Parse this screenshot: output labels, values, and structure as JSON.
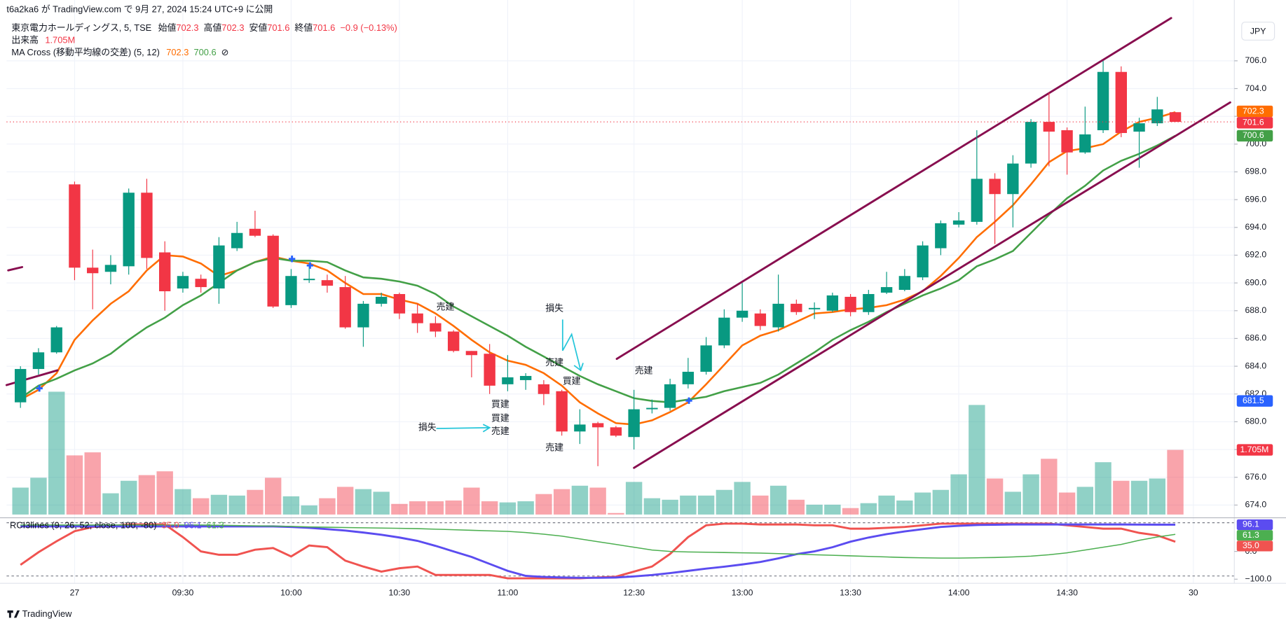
{
  "header": {
    "published": "t6a2ka6 が TradingView.com で 9月 27, 2024 15:24 UTC+9 に公開",
    "symbol": "東京電力ホールディングス, 5, TSE",
    "open_label": "始値",
    "high_label": "高値",
    "low_label": "安値",
    "close_label": "終値",
    "change": "−0.9 (−0.13%)",
    "volume_label": "出来高",
    "ma_label": "MA Cross (移動平均線の交差) (5, 12)",
    "logo": "TradingView"
  },
  "chart_data": {
    "type": "candlestick",
    "currency": "JPY",
    "grid": true,
    "xlim": [
      -0.77,
      67.27
    ],
    "xticks": [
      {
        "value": 3,
        "label": "27"
      },
      {
        "value": 9,
        "label": "09:30"
      },
      {
        "value": 15,
        "label": "10:00"
      },
      {
        "value": 21,
        "label": "10:30"
      },
      {
        "value": 27,
        "label": "11:00"
      },
      {
        "value": 34,
        "label": "12:30"
      },
      {
        "value": 40,
        "label": "13:00"
      },
      {
        "value": 46,
        "label": "13:30"
      },
      {
        "value": 52,
        "label": "14:00"
      },
      {
        "value": 58,
        "label": "14:30"
      },
      {
        "value": 65,
        "label": "30"
      }
    ],
    "ylim": [
      673.2,
      709.2
    ],
    "yticks": [
      {
        "value": 674,
        "label": "674.0"
      },
      {
        "value": 676,
        "label": "676.0"
      },
      {
        "value": 678,
        "label": "678.0"
      },
      {
        "value": 680,
        "label": "680.0"
      },
      {
        "value": 682,
        "label": "682.0"
      },
      {
        "value": 684,
        "label": "684.0"
      },
      {
        "value": 686,
        "label": "686.0"
      },
      {
        "value": 688,
        "label": "688.0"
      },
      {
        "value": 690,
        "label": "690.0"
      },
      {
        "value": 692,
        "label": "692.0"
      },
      {
        "value": 694,
        "label": "694.0"
      },
      {
        "value": 696,
        "label": "696.0"
      },
      {
        "value": 698,
        "label": "698.0"
      },
      {
        "value": 700,
        "label": "700.0"
      },
      {
        "value": 702,
        "label": "702.0"
      },
      {
        "value": 704,
        "label": "704.0"
      },
      {
        "value": 706,
        "label": "706.0"
      }
    ],
    "up_color": "#089981",
    "down_color": "#f23645",
    "open": [
      681.4,
      683.8,
      685.0,
      697.1,
      691.1,
      690.8,
      691.2,
      696.5,
      692.2,
      689.6,
      690.3,
      689.6,
      692.5,
      693.9,
      693.4,
      688.4,
      690.2,
      690.2,
      689.7,
      686.8,
      688.5,
      689.2,
      687.8,
      687.1,
      686.5,
      685.1,
      684.9,
      682.7,
      683.0,
      682.7,
      682.2,
      679.3,
      679.9,
      679.6,
      678.9,
      680.9,
      681.0,
      682.7,
      683.6,
      685.5,
      687.5,
      687.8,
      686.8,
      688.5,
      688.1,
      688.0,
      689.0,
      687.9,
      689.3,
      689.5,
      690.4,
      692.5,
      694.2,
      694.4,
      697.5,
      696.4,
      698.6,
      701.6,
      701.0,
      699.4,
      701.0,
      705.2,
      700.9,
      701.5,
      702.3
    ],
    "high": [
      684.0,
      685.3,
      686.9,
      697.3,
      692.4,
      692.0,
      696.8,
      697.5,
      693.0,
      690.8,
      690.6,
      693.3,
      694.4,
      695.2,
      693.5,
      691.0,
      691.4,
      690.6,
      690.5,
      688.7,
      689.3,
      689.3,
      688.5,
      687.6,
      686.6,
      685.1,
      685.6,
      684.8,
      683.5,
      683.0,
      682.3,
      680.9,
      680.0,
      679.7,
      682.3,
      681.6,
      683.1,
      684.6,
      686.1,
      688.1,
      690.0,
      688.1,
      690.6,
      688.8,
      688.6,
      689.3,
      689.2,
      689.5,
      690.8,
      691.0,
      693.0,
      694.5,
      695.1,
      701.0,
      697.9,
      699.2,
      701.8,
      703.7,
      701.2,
      702.7,
      706.0,
      705.6,
      701.9,
      703.4,
      702.3
    ],
    "low": [
      681.0,
      683.4,
      684.9,
      690.2,
      688.1,
      689.9,
      690.6,
      691.0,
      688.0,
      689.3,
      689.3,
      688.5,
      692.3,
      693.3,
      688.2,
      688.2,
      690.0,
      689.3,
      686.7,
      685.4,
      688.3,
      687.4,
      686.4,
      686.1,
      685.0,
      683.2,
      682.0,
      682.2,
      682.3,
      681.2,
      679.0,
      678.4,
      676.8,
      678.9,
      678.0,
      680.6,
      680.8,
      682.4,
      683.4,
      685.3,
      687.2,
      686.6,
      686.5,
      687.7,
      687.4,
      687.9,
      687.6,
      687.7,
      689.2,
      689.4,
      690.2,
      692.0,
      694.0,
      694.2,
      692.8,
      694.0,
      698.3,
      698.4,
      697.8,
      699.3,
      700.8,
      700.5,
      698.3,
      701.3,
      701.6
    ],
    "close": [
      683.8,
      685.0,
      686.8,
      691.1,
      690.7,
      691.3,
      696.5,
      691.8,
      689.4,
      690.5,
      689.7,
      692.7,
      693.6,
      693.4,
      688.3,
      690.5,
      690.3,
      689.8,
      686.8,
      688.5,
      689.0,
      687.8,
      687.1,
      686.5,
      685.1,
      684.8,
      682.6,
      683.2,
      683.3,
      682.0,
      679.3,
      679.8,
      679.6,
      679.0,
      680.9,
      681.0,
      682.7,
      683.6,
      685.5,
      687.5,
      688.0,
      686.9,
      688.5,
      687.9,
      688.2,
      689.1,
      687.9,
      689.2,
      689.7,
      690.5,
      692.7,
      694.3,
      694.5,
      697.5,
      696.4,
      698.6,
      701.6,
      700.9,
      699.4,
      700.7,
      705.2,
      700.8,
      701.5,
      702.5,
      701.6
    ],
    "volume": {
      "values": [
        0.71,
        0.97,
        3.24,
        1.56,
        1.64,
        0.56,
        0.89,
        1.04,
        1.14,
        0.67,
        0.43,
        0.52,
        0.5,
        0.65,
        0.97,
        0.48,
        0.24,
        0.43,
        0.73,
        0.67,
        0.6,
        0.28,
        0.35,
        0.35,
        0.37,
        0.71,
        0.35,
        0.32,
        0.35,
        0.54,
        0.67,
        0.76,
        0.71,
        0.04,
        0.86,
        0.43,
        0.39,
        0.5,
        0.5,
        0.65,
        0.86,
        0.5,
        0.76,
        0.39,
        0.26,
        0.26,
        0.17,
        0.3,
        0.5,
        0.37,
        0.58,
        0.65,
        1.06,
        2.89,
        0.95,
        0.6,
        1.06,
        1.47,
        0.58,
        0.73,
        1.38,
        0.89,
        0.89,
        0.95,
        1.705
      ],
      "last_label": "1.705M",
      "ylim": [
        0,
        3.89
      ]
    },
    "ma": [
      {
        "color": "#ff6d00",
        "values": [
          681.6,
          682.3,
          683.5,
          685.9,
          687.3,
          688.5,
          689.4,
          690.9,
          692.0,
          691.9,
          691.4,
          690.5,
          690.9,
          691.5,
          691.9,
          691.6,
          691.4,
          690.9,
          690.0,
          689.2,
          689.2,
          688.8,
          688.5,
          687.8,
          686.9,
          685.9,
          685.0,
          684.4,
          684.1,
          683.5,
          682.6,
          681.4,
          680.6,
          679.9,
          679.8,
          680.1,
          680.7,
          681.4,
          682.7,
          684.1,
          685.5,
          686.2,
          686.6,
          687.2,
          687.8,
          687.9,
          688.1,
          688.2,
          688.4,
          688.8,
          689.4,
          690.5,
          691.8,
          693.3,
          694.4,
          695.6,
          697.1,
          698.7,
          699.5,
          699.7,
          700.0,
          700.9,
          701.6,
          701.9,
          702.3
        ]
      },
      {
        "color": "#43a047",
        "values": [
          681.7,
          682.6,
          683.1,
          683.7,
          684.2,
          684.9,
          685.9,
          686.8,
          687.5,
          688.4,
          689.1,
          690.0,
          690.9,
          691.5,
          691.8,
          691.6,
          691.6,
          691.5,
          690.9,
          690.4,
          690.3,
          690.1,
          689.8,
          689.2,
          688.3,
          687.6,
          686.9,
          686.2,
          685.4,
          684.7,
          684.0,
          683.3,
          682.7,
          682.2,
          681.7,
          681.5,
          681.4,
          681.6,
          681.8,
          682.2,
          682.5,
          682.8,
          683.4,
          684.2,
          685.0,
          685.9,
          686.6,
          687.2,
          687.9,
          688.5,
          689.1,
          689.6,
          690.2,
          691.2,
          691.7,
          692.3,
          693.6,
          694.9,
          696.1,
          697.0,
          698.1,
          698.8,
          699.3,
          699.9,
          700.6
        ]
      }
    ],
    "marker": {
      "value": 681.5,
      "color": "#2962ff"
    },
    "annotations": [
      "売建",
      "損失",
      "売建",
      "買建",
      "売建",
      "買建",
      "買建",
      "売建",
      "損失",
      "売建"
    ],
    "rci": {
      "title": "RCI3lines (9, 26, 52, close, 100, -80)",
      "ylim": [
        -115,
        118
      ],
      "yticks": [
        {
          "value": 0,
          "label": "0.0"
        },
        {
          "value": -100,
          "label": "−100.0"
        }
      ],
      "series": [
        {
          "color": "#f05350",
          "last": {
            "value": 35,
            "label": "35.0"
          },
          "values": [
            -48.5,
            -3,
            36.4,
            72.7,
            87.9,
            90.9,
            97,
            97,
            97,
            51.5,
            0,
            -12.1,
            -12.1,
            6.1,
            12.1,
            -18.2,
            21.2,
            15.2,
            -33.3,
            -54.5,
            -72.7,
            -60.6,
            -54.5,
            -84.8,
            -84.8,
            -84.8,
            -84.8,
            -97,
            -97,
            -97,
            -97,
            -97,
            -93.9,
            -90.9,
            -72.7,
            -54.5,
            -9.1,
            51.5,
            93.9,
            100,
            100,
            97,
            97,
            97,
            93.9,
            93.9,
            81.8,
            81.8,
            84.8,
            87.9,
            93.9,
            100,
            100,
            100,
            100,
            100,
            100,
            100,
            93.9,
            87.9,
            81.8,
            81.8,
            66.7,
            57.6,
            35
          ]
        },
        {
          "color": "#5b4cf0",
          "last": {
            "value": 96.1,
            "label": "96.1"
          },
          "values": [
            90,
            90,
            90,
            90,
            90,
            90,
            90,
            90,
            90,
            90,
            90,
            90,
            90,
            90,
            90,
            88,
            85,
            80,
            75,
            68,
            60,
            50,
            38,
            20,
            0,
            -20,
            -45,
            -70,
            -88,
            -92,
            -94,
            -95,
            -95,
            -94,
            -90,
            -85,
            -78,
            -70,
            -62,
            -55,
            -47,
            -38,
            -25,
            -10,
            0,
            15,
            35,
            50,
            62,
            72,
            80,
            88,
            92,
            95,
            96,
            97,
            97,
            97,
            97,
            97,
            97,
            97,
            96.5,
            96.3,
            96.1
          ]
        },
        {
          "color": "#4caf50",
          "last": {
            "value": 61.3,
            "label": "61.3"
          },
          "values": [
            95,
            95,
            95,
            95,
            95,
            95,
            95,
            95,
            95,
            95,
            95,
            94,
            93,
            92,
            91,
            90,
            88,
            87,
            86,
            85,
            84,
            83,
            82,
            80,
            78,
            76,
            74,
            72,
            68,
            62,
            55,
            45,
            35,
            25,
            15,
            5,
            0,
            -2,
            -3,
            -4,
            -5,
            -6,
            -8,
            -10,
            -12,
            -14,
            -16,
            -18,
            -20,
            -22,
            -23,
            -24,
            -24,
            -23,
            -22,
            -20,
            -17,
            -12,
            -5,
            5,
            15,
            25,
            40,
            52,
            61.3
          ]
        }
      ]
    }
  }
}
